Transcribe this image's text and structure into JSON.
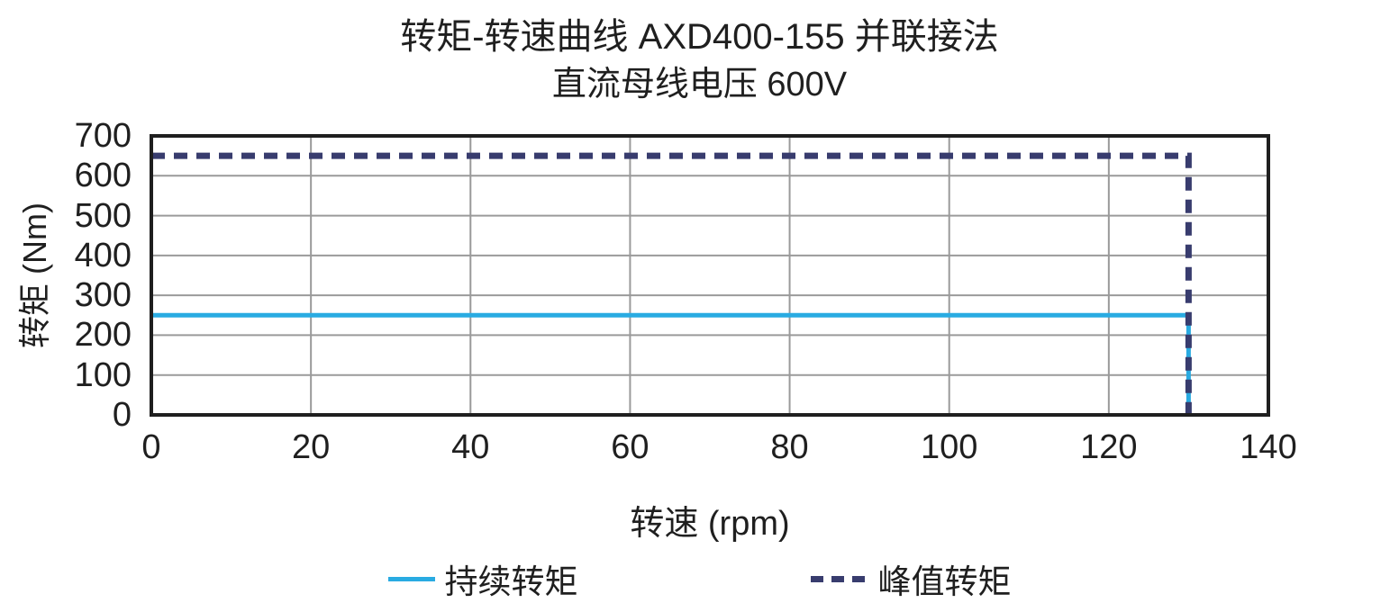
{
  "chart_data": {
    "type": "line",
    "title": "转矩-转速曲线 AXD400-155 并联接法",
    "subtitle": "直流母线电压 600V",
    "xlabel": "转速 (rpm)",
    "ylabel": "转矩 (Nm)",
    "xlim": [
      0,
      140
    ],
    "ylim": [
      0,
      700
    ],
    "xticks": [
      0,
      20,
      40,
      60,
      80,
      100,
      120,
      140
    ],
    "yticks": [
      0,
      100,
      200,
      300,
      400,
      500,
      600,
      700
    ],
    "grid": true,
    "grid_color": "#9A9A9A",
    "frame_color": "#1F1F1F",
    "legend_position": "bottom-center",
    "series": [
      {
        "name": "持续转矩",
        "line_style": "solid",
        "color": "#29ABE2",
        "x": [
          0,
          130,
          130
        ],
        "y": [
          250,
          250,
          0
        ]
      },
      {
        "name": "峰值转矩",
        "line_style": "dashed",
        "color": "#383C6E",
        "x": [
          0,
          130,
          130
        ],
        "y": [
          650,
          650,
          0
        ]
      }
    ]
  },
  "colors": {
    "text": "#1F1F1F",
    "continuous_torque_line": "#29ABE2",
    "peak_torque_line": "#383C6E",
    "gridline": "#9A9A9A",
    "axis_frame": "#1F1F1F"
  }
}
